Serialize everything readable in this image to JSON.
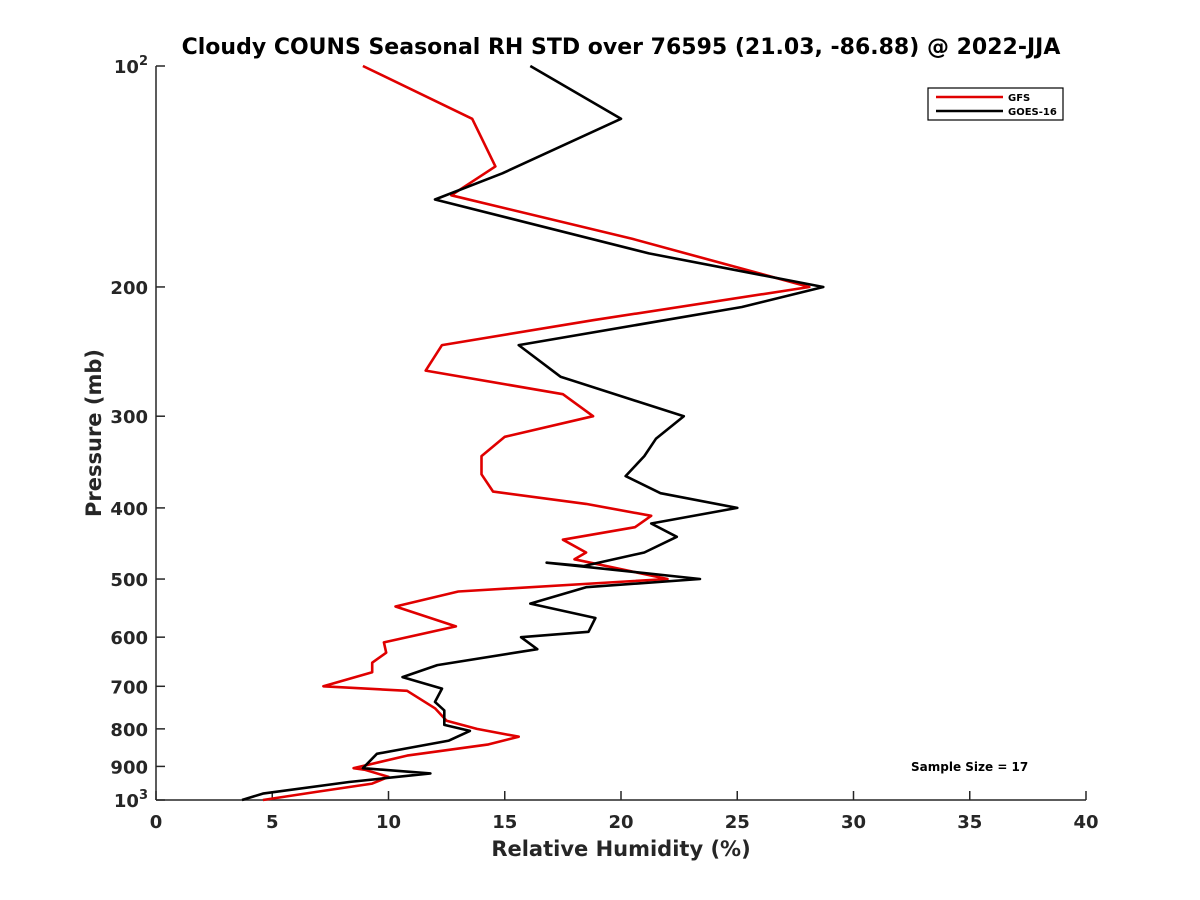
{
  "chart_data": {
    "type": "line",
    "title": "Cloudy COUNS Seasonal RH STD over 76595 (21.03, -86.88) @ 2022-JJA",
    "xlabel": "Relative Humidity (%)",
    "ylabel": "Pressure (mb)",
    "xlim": [
      0,
      40
    ],
    "ylim": [
      100,
      1000
    ],
    "yscale": "log",
    "y_reversed": true,
    "grid": false,
    "legend_position": "top-right",
    "x_ticks": [
      0,
      5,
      10,
      15,
      20,
      25,
      30,
      35,
      40
    ],
    "x_tick_labels": [
      "0",
      "5",
      "10",
      "15",
      "20",
      "25",
      "30",
      "35",
      "40"
    ],
    "y_ticks": [
      100,
      200,
      300,
      400,
      500,
      600,
      700,
      800,
      900,
      1000
    ],
    "y_tick_labels": [
      {
        "base": "10",
        "exp": "2"
      },
      {
        "base": "200",
        "exp": ""
      },
      {
        "base": "300",
        "exp": ""
      },
      {
        "base": "400",
        "exp": ""
      },
      {
        "base": "500",
        "exp": ""
      },
      {
        "base": "600",
        "exp": ""
      },
      {
        "base": "700",
        "exp": ""
      },
      {
        "base": "800",
        "exp": ""
      },
      {
        "base": "900",
        "exp": ""
      },
      {
        "base": "10",
        "exp": "3"
      }
    ],
    "annotation": "Sample Size = 17",
    "series": [
      {
        "name": "GFS",
        "color": "#e00000",
        "x": [
          8.9,
          13.6,
          14.6,
          12.7,
          20.5,
          28.1,
          18.8,
          12.3,
          11.6,
          17.5,
          18.8,
          15.0,
          14.0,
          14.0,
          14.5,
          18.5,
          21.3,
          20.6,
          17.5,
          18.5,
          18.0,
          22.0,
          13.0,
          10.3,
          12.9,
          9.8,
          9.9,
          9.3,
          9.3,
          7.2,
          10.8,
          12.0,
          12.5,
          13.8,
          15.6,
          14.3,
          10.8,
          8.5,
          9.0,
          10.0,
          9.3,
          6.9,
          4.6
        ],
        "y": [
          100,
          118,
          137,
          150,
          172,
          200,
          222,
          240,
          260,
          280,
          300,
          320,
          340,
          360,
          380,
          395,
          410,
          425,
          442,
          460,
          470,
          500,
          520,
          545,
          580,
          610,
          630,
          650,
          670,
          700,
          710,
          750,
          780,
          800,
          820,
          840,
          870,
          905,
          910,
          930,
          950,
          975,
          1000
        ]
      },
      {
        "name": "GOES-16",
        "color": "#000000",
        "x": [
          16.1,
          20.0,
          14.9,
          12.0,
          21.2,
          28.7,
          25.2,
          15.6,
          17.4,
          20.5,
          22.7,
          21.5,
          21.0,
          20.2,
          21.7,
          25.0,
          21.3,
          22.4,
          21.0,
          18.4,
          16.8,
          23.4,
          18.5,
          16.1,
          18.9,
          18.6,
          15.7,
          16.4,
          12.1,
          10.6,
          12.3,
          12.0,
          12.4,
          12.4,
          13.5,
          12.6,
          9.5,
          8.9,
          11.8,
          8.3,
          4.6,
          3.7
        ],
        "y": [
          100,
          118,
          140,
          152,
          180,
          200,
          213,
          240,
          265,
          285,
          300,
          322,
          340,
          362,
          382,
          400,
          420,
          438,
          460,
          480,
          475,
          500,
          513,
          540,
          565,
          590,
          600,
          623,
          655,
          680,
          705,
          735,
          755,
          790,
          805,
          830,
          865,
          905,
          920,
          945,
          980,
          1000
        ]
      }
    ]
  }
}
